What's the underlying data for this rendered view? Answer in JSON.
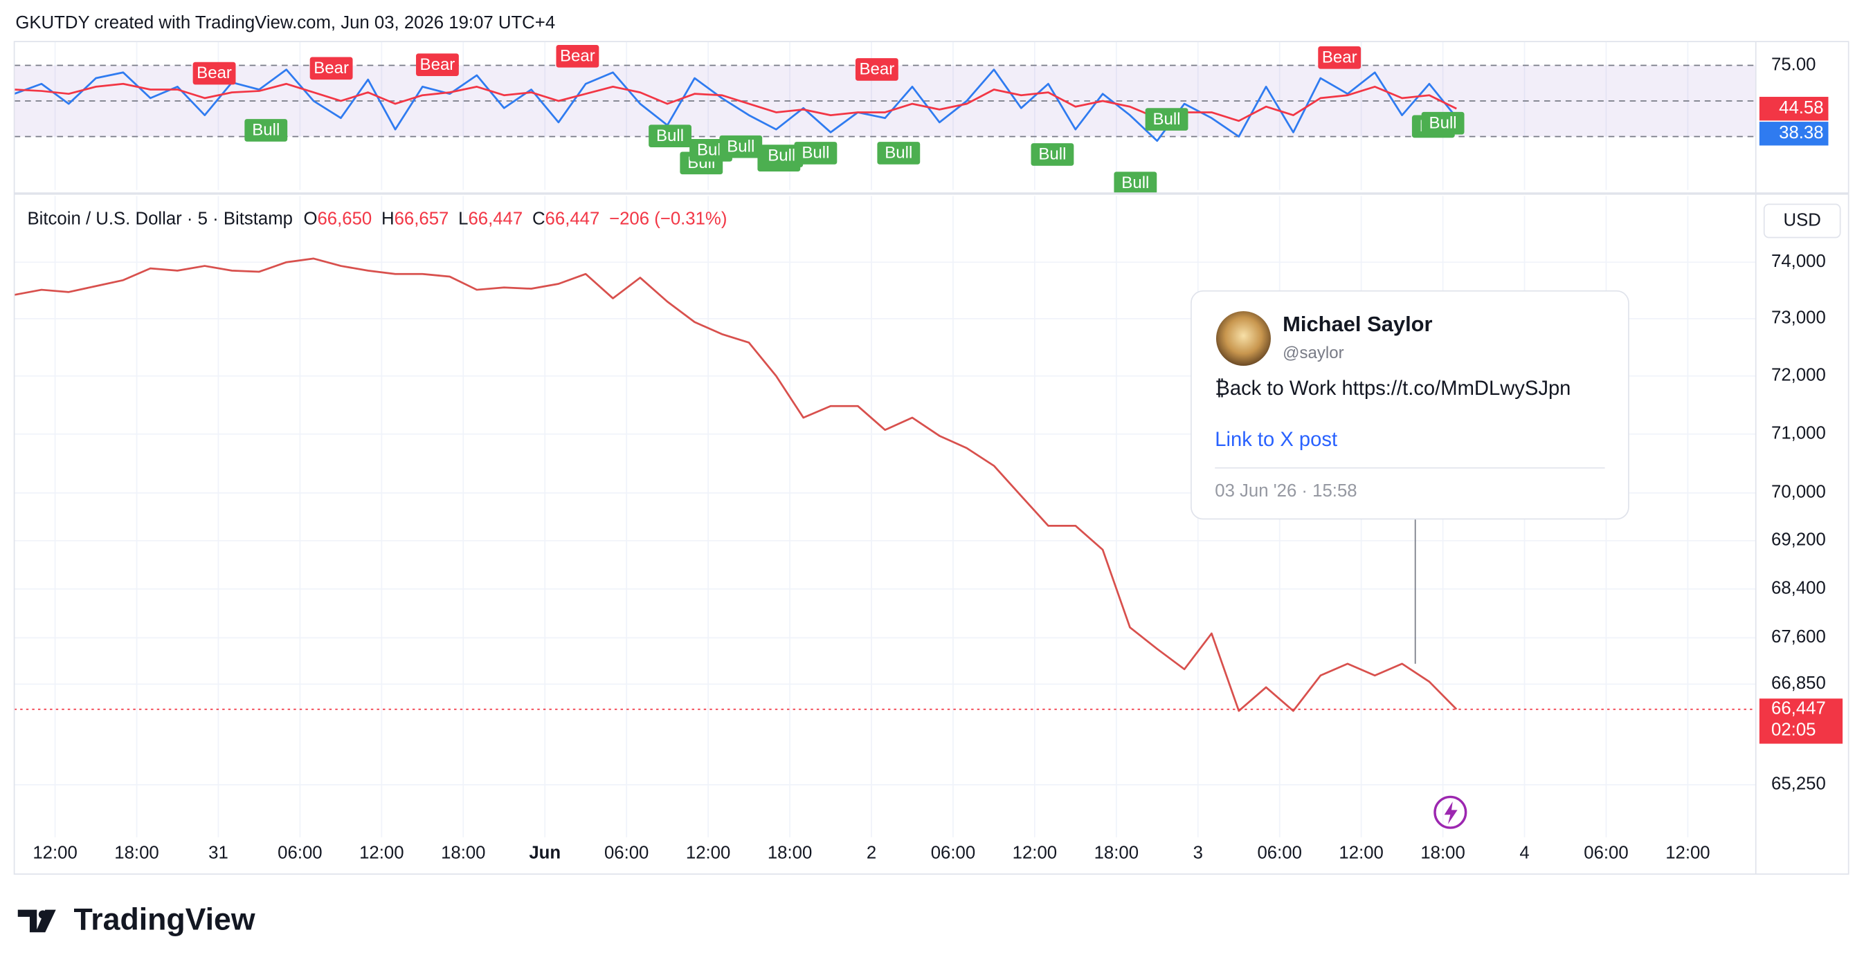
{
  "header": "GKUTDY created with TradingView.com, Jun 03, 2026 19:07 UTC+4",
  "brand": "TradingView",
  "tweet": {
    "name": "Michael Saylor",
    "handle": "@saylor",
    "text": "₿ack to Work https://t.co/MmDLwySJpn",
    "link": "Link to X post",
    "date": "03 Jun '26 · 15:58"
  },
  "chart_data": [
    {
      "type": "line",
      "grid": true,
      "x": [
        -3,
        -1,
        1,
        3,
        5,
        7,
        9,
        11,
        13,
        15,
        17,
        19,
        21,
        23,
        25,
        27,
        29,
        31,
        33,
        35,
        37,
        39,
        41,
        43,
        45,
        47,
        49,
        51,
        53,
        55,
        57,
        59,
        61,
        63,
        65,
        67,
        69,
        71,
        73,
        75,
        77,
        79,
        81,
        83,
        85,
        87,
        89,
        91,
        93,
        95,
        97,
        99,
        101,
        103
      ],
      "ylim": [
        -12.5,
        91.7
      ],
      "yticks": [
        {
          "value": 75,
          "label": "75.00"
        }
      ],
      "levels": [
        75,
        50,
        25
      ],
      "band": {
        "from": 75,
        "to": 25,
        "color": "#7e57c2"
      },
      "series": [
        {
          "color": "#2f7bf0",
          "last_label": "38.38",
          "values": [
            55,
            62,
            48,
            66,
            70,
            52,
            60,
            40,
            63,
            58,
            72,
            50,
            38,
            65,
            30,
            60,
            55,
            68,
            45,
            58,
            35,
            62,
            70,
            48,
            33,
            66,
            52,
            40,
            30,
            45,
            28,
            42,
            38,
            60,
            35,
            50,
            72,
            45,
            62,
            30,
            55,
            40,
            22,
            48,
            38,
            25,
            60,
            28,
            66,
            55,
            70,
            40,
            62,
            38.38
          ]
        },
        {
          "color": "#f23645",
          "last_label": "44.58",
          "values": [
            58,
            57,
            55,
            60,
            62,
            58,
            58,
            52,
            56,
            57,
            62,
            56,
            50,
            56,
            48,
            54,
            56,
            60,
            54,
            56,
            50,
            55,
            60,
            56,
            48,
            55,
            54,
            48,
            42,
            44,
            40,
            42,
            42,
            48,
            44,
            48,
            58,
            54,
            56,
            46,
            50,
            46,
            38,
            42,
            42,
            36,
            46,
            40,
            52,
            54,
            60,
            52,
            54,
            44.58
          ]
        }
      ],
      "annotations": [
        {
          "x": 11.7,
          "y": 69,
          "label": "Bear",
          "color": "#f23645"
        },
        {
          "x": 20.3,
          "y": 72.5,
          "label": "Bear",
          "color": "#f23645"
        },
        {
          "x": 28.1,
          "y": 75,
          "label": "Bear",
          "color": "#f23645"
        },
        {
          "x": 38.4,
          "y": 81,
          "label": "Bear",
          "color": "#f23645"
        },
        {
          "x": 60.4,
          "y": 71.7,
          "label": "Bear",
          "color": "#f23645"
        },
        {
          "x": 94.4,
          "y": 80,
          "label": "Bear",
          "color": "#f23645"
        },
        {
          "x": 15.5,
          "y": 29,
          "label": "Bull",
          "color": "#4caf50"
        },
        {
          "x": 45.2,
          "y": 25,
          "label": "Bull",
          "color": "#4caf50"
        },
        {
          "x": 47.5,
          "y": 6,
          "label": "Bull",
          "color": "#4caf50"
        },
        {
          "x": 48.2,
          "y": 15,
          "label": "Bull",
          "color": "#4caf50"
        },
        {
          "x": 50.4,
          "y": 17.5,
          "label": "Bull",
          "color": "#4caf50"
        },
        {
          "x": 53.2,
          "y": 8,
          "label": "Bull",
          "color": "#4caf50"
        },
        {
          "x": 53.4,
          "y": 11,
          "label": "Bull",
          "color": "#4caf50"
        },
        {
          "x": 55.9,
          "y": 13,
          "label": "Bull",
          "color": "#4caf50"
        },
        {
          "x": 62.0,
          "y": 13,
          "label": "Bull",
          "color": "#4caf50"
        },
        {
          "x": 73.3,
          "y": 12,
          "label": "Bull",
          "color": "#4caf50"
        },
        {
          "x": 79.4,
          "y": -8,
          "label": "Bull",
          "color": "#4caf50"
        },
        {
          "x": 81.7,
          "y": 36.7,
          "label": "Bull",
          "color": "#4caf50"
        },
        {
          "x": 101.3,
          "y": 31.7,
          "label": "Bull",
          "color": "#4caf50"
        },
        {
          "x": 102.0,
          "y": 34,
          "label": "Bull",
          "color": "#4caf50"
        }
      ]
    },
    {
      "type": "line",
      "title": "Bitcoin / U.S. Dollar · 5 · Bitstamp",
      "log_scale": true,
      "grid": true,
      "currency": "USD",
      "color": "#d8504d",
      "ohlc": [
        {
          "name": "O",
          "value": 66650,
          "label": "66,650"
        },
        {
          "name": "H",
          "value": 66657,
          "label": "66,657"
        },
        {
          "name": "L",
          "value": 66447,
          "label": "66,447"
        },
        {
          "name": "C",
          "value": 66447,
          "label": "66,447"
        }
      ],
      "change": -206,
      "change_label": "−206 (−0.31%)",
      "last_price": {
        "value": 66447,
        "label": "66,447"
      },
      "countdown": "02:05",
      "xlim": [
        -3,
        125
      ],
      "xticks": [
        {
          "value": 0,
          "label": "12:00"
        },
        {
          "value": 6,
          "label": "18:00"
        },
        {
          "value": 12,
          "label": "31"
        },
        {
          "value": 18,
          "label": "06:00"
        },
        {
          "value": 24,
          "label": "12:00"
        },
        {
          "value": 30,
          "label": "18:00"
        },
        {
          "value": 36,
          "label": "Jun"
        },
        {
          "value": 42,
          "label": "06:00"
        },
        {
          "value": 48,
          "label": "12:00"
        },
        {
          "value": 54,
          "label": "18:00"
        },
        {
          "value": 60,
          "label": "2"
        },
        {
          "value": 66,
          "label": "06:00"
        },
        {
          "value": 72,
          "label": "12:00"
        },
        {
          "value": 78,
          "label": "18:00"
        },
        {
          "value": 84,
          "label": "3"
        },
        {
          "value": 90,
          "label": "06:00"
        },
        {
          "value": 96,
          "label": "12:00"
        },
        {
          "value": 102,
          "label": "18:00"
        },
        {
          "value": 108,
          "label": "4"
        },
        {
          "value": 114,
          "label": "06:00"
        },
        {
          "value": 120,
          "label": "12:00"
        }
      ],
      "ylim": [
        64430,
        75190
      ],
      "yticks": [
        {
          "value": 74000,
          "label": "74,000"
        },
        {
          "value": 73000,
          "label": "73,000"
        },
        {
          "value": 72000,
          "label": "72,000"
        },
        {
          "value": 71000,
          "label": "71,000"
        },
        {
          "value": 70000,
          "label": "70,000"
        },
        {
          "value": 69200,
          "label": "69,200"
        },
        {
          "value": 68400,
          "label": "68,400"
        },
        {
          "value": 67600,
          "label": "67,600"
        },
        {
          "value": 66850,
          "label": "66,850"
        },
        {
          "value": 65250,
          "label": "65,250"
        }
      ],
      "x": [
        -3,
        -1,
        1,
        3,
        5,
        7,
        9,
        11,
        13,
        15,
        17,
        19,
        21,
        23,
        25,
        27,
        29,
        31,
        33,
        35,
        37,
        39,
        41,
        43,
        45,
        47,
        49,
        51,
        53,
        55,
        57,
        59,
        61,
        63,
        65,
        67,
        69,
        71,
        73,
        75,
        77,
        79,
        81,
        83,
        85,
        87,
        89,
        91,
        93,
        95,
        97,
        99,
        101,
        103
      ],
      "values": [
        73420,
        73510,
        73470,
        73575,
        73680,
        73890,
        73850,
        73935,
        73850,
        73830,
        74000,
        74065,
        73935,
        73850,
        73790,
        73790,
        73745,
        73510,
        73550,
        73530,
        73615,
        73790,
        73360,
        73725,
        73300,
        72940,
        72730,
        72580,
        72000,
        71280,
        71480,
        71480,
        71070,
        71280,
        70970,
        70760,
        70460,
        69950,
        69450,
        69450,
        69050,
        67770,
        67420,
        67090,
        67670,
        66420,
        66800,
        66420,
        66990,
        67180,
        66990,
        67180,
        66890,
        66447
      ],
      "event_x": 99.97
    }
  ]
}
